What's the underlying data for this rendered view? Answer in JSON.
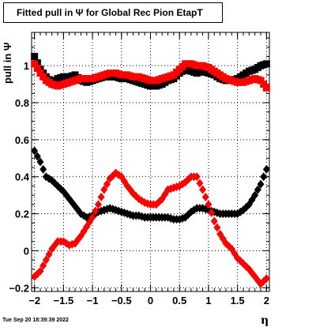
{
  "chart_data": {
    "type": "scatter",
    "title": "Fitted pull in  Ψ  for Global Rec Pion EtapT",
    "xlabel": "η",
    "ylabel": "pull in  Ψ",
    "xlim": [
      -2.05,
      2.05
    ],
    "ylim": [
      -0.22,
      1.18
    ],
    "x_ticks": [
      "−2",
      "−1.5",
      "−1",
      "−0.5",
      "0",
      "0.5",
      "1",
      "1.5",
      "2"
    ],
    "y_ticks": [
      "−0.2",
      "0",
      "0.2",
      "0.4",
      "0.6",
      "0.8",
      "1"
    ],
    "grid": true,
    "timestamp": "Tue Sep 20 18:39:39 2022",
    "series": [
      {
        "marker": "square",
        "color": "#000000",
        "x": [
          -2.0,
          -1.9,
          -1.8,
          -1.7,
          -1.6,
          -1.5,
          -1.4,
          -1.3,
          -1.2,
          -1.1,
          -1.0,
          -0.9,
          -0.8,
          -0.7,
          -0.6,
          -0.5,
          -0.4,
          -0.3,
          -0.2,
          -0.1,
          0.0,
          0.1,
          0.2,
          0.3,
          0.4,
          0.5,
          0.6,
          0.7,
          0.8,
          0.9,
          1.0,
          1.1,
          1.2,
          1.3,
          1.4,
          1.5,
          1.6,
          1.7,
          1.8,
          1.9,
          2.0
        ],
        "y": [
          1.05,
          0.98,
          0.94,
          0.91,
          0.93,
          0.94,
          0.94,
          0.95,
          0.92,
          0.91,
          0.92,
          0.93,
          0.94,
          0.94,
          0.94,
          0.93,
          0.93,
          0.92,
          0.91,
          0.9,
          0.89,
          0.89,
          0.9,
          0.92,
          0.93,
          0.96,
          0.98,
          0.97,
          0.96,
          0.97,
          0.96,
          0.95,
          0.93,
          0.92,
          0.92,
          0.93,
          0.95,
          0.97,
          0.98,
          1.0,
          1.01
        ]
      },
      {
        "marker": "square",
        "color": "#ff0000",
        "x": [
          -2.0,
          -1.9,
          -1.8,
          -1.7,
          -1.6,
          -1.5,
          -1.4,
          -1.3,
          -1.2,
          -1.1,
          -1.0,
          -0.9,
          -0.8,
          -0.7,
          -0.6,
          -0.5,
          -0.4,
          -0.3,
          -0.2,
          -0.1,
          0.0,
          0.1,
          0.2,
          0.3,
          0.4,
          0.5,
          0.6,
          0.7,
          0.8,
          0.9,
          1.0,
          1.1,
          1.2,
          1.3,
          1.4,
          1.5,
          1.6,
          1.7,
          1.8,
          1.9,
          2.0
        ],
        "y": [
          1.01,
          0.96,
          0.92,
          0.9,
          0.89,
          0.9,
          0.91,
          0.92,
          0.93,
          0.93,
          0.93,
          0.94,
          0.95,
          0.96,
          0.96,
          0.95,
          0.95,
          0.94,
          0.94,
          0.93,
          0.92,
          0.92,
          0.93,
          0.94,
          0.95,
          0.98,
          1.01,
          1.01,
          1.0,
          1.0,
          0.99,
          0.97,
          0.95,
          0.93,
          0.92,
          0.91,
          0.91,
          0.92,
          0.93,
          0.92,
          0.88
        ]
      },
      {
        "marker": "diamond",
        "color": "#000000",
        "x": [
          -2.0,
          -1.9,
          -1.8,
          -1.7,
          -1.6,
          -1.5,
          -1.4,
          -1.3,
          -1.2,
          -1.1,
          -1.0,
          -0.9,
          -0.8,
          -0.7,
          -0.6,
          -0.5,
          -0.4,
          -0.3,
          -0.2,
          -0.1,
          0.0,
          0.1,
          0.2,
          0.3,
          0.4,
          0.5,
          0.6,
          0.7,
          0.8,
          0.9,
          1.0,
          1.1,
          1.2,
          1.3,
          1.4,
          1.5,
          1.6,
          1.7,
          1.8,
          1.9,
          2.0
        ],
        "y": [
          0.54,
          0.48,
          0.4,
          0.38,
          0.35,
          0.32,
          0.28,
          0.24,
          0.2,
          0.18,
          0.19,
          0.21,
          0.22,
          0.23,
          0.22,
          0.21,
          0.2,
          0.19,
          0.19,
          0.18,
          0.18,
          0.18,
          0.18,
          0.18,
          0.17,
          0.17,
          0.18,
          0.21,
          0.23,
          0.23,
          0.22,
          0.21,
          0.2,
          0.2,
          0.2,
          0.2,
          0.22,
          0.25,
          0.3,
          0.36,
          0.44
        ]
      },
      {
        "marker": "diamond",
        "color": "#ff0000",
        "x": [
          -2.0,
          -1.9,
          -1.8,
          -1.7,
          -1.6,
          -1.5,
          -1.4,
          -1.3,
          -1.2,
          -1.1,
          -1.0,
          -0.9,
          -0.8,
          -0.7,
          -0.6,
          -0.5,
          -0.4,
          -0.3,
          -0.2,
          -0.1,
          0.0,
          0.1,
          0.2,
          0.3,
          0.4,
          0.5,
          0.6,
          0.7,
          0.8,
          0.9,
          1.0,
          1.1,
          1.2,
          1.3,
          1.4,
          1.5,
          1.6,
          1.7,
          1.8,
          1.9,
          2.0
        ],
        "y": [
          -0.14,
          -0.11,
          -0.05,
          0.01,
          0.05,
          0.05,
          0.03,
          0.04,
          0.08,
          0.13,
          0.18,
          0.25,
          0.33,
          0.39,
          0.42,
          0.4,
          0.35,
          0.31,
          0.28,
          0.26,
          0.25,
          0.25,
          0.28,
          0.33,
          0.34,
          0.35,
          0.37,
          0.4,
          0.4,
          0.33,
          0.25,
          0.16,
          0.09,
          0.04,
          0.01,
          -0.04,
          -0.07,
          -0.1,
          -0.14,
          -0.18,
          -0.15
        ]
      }
    ]
  }
}
